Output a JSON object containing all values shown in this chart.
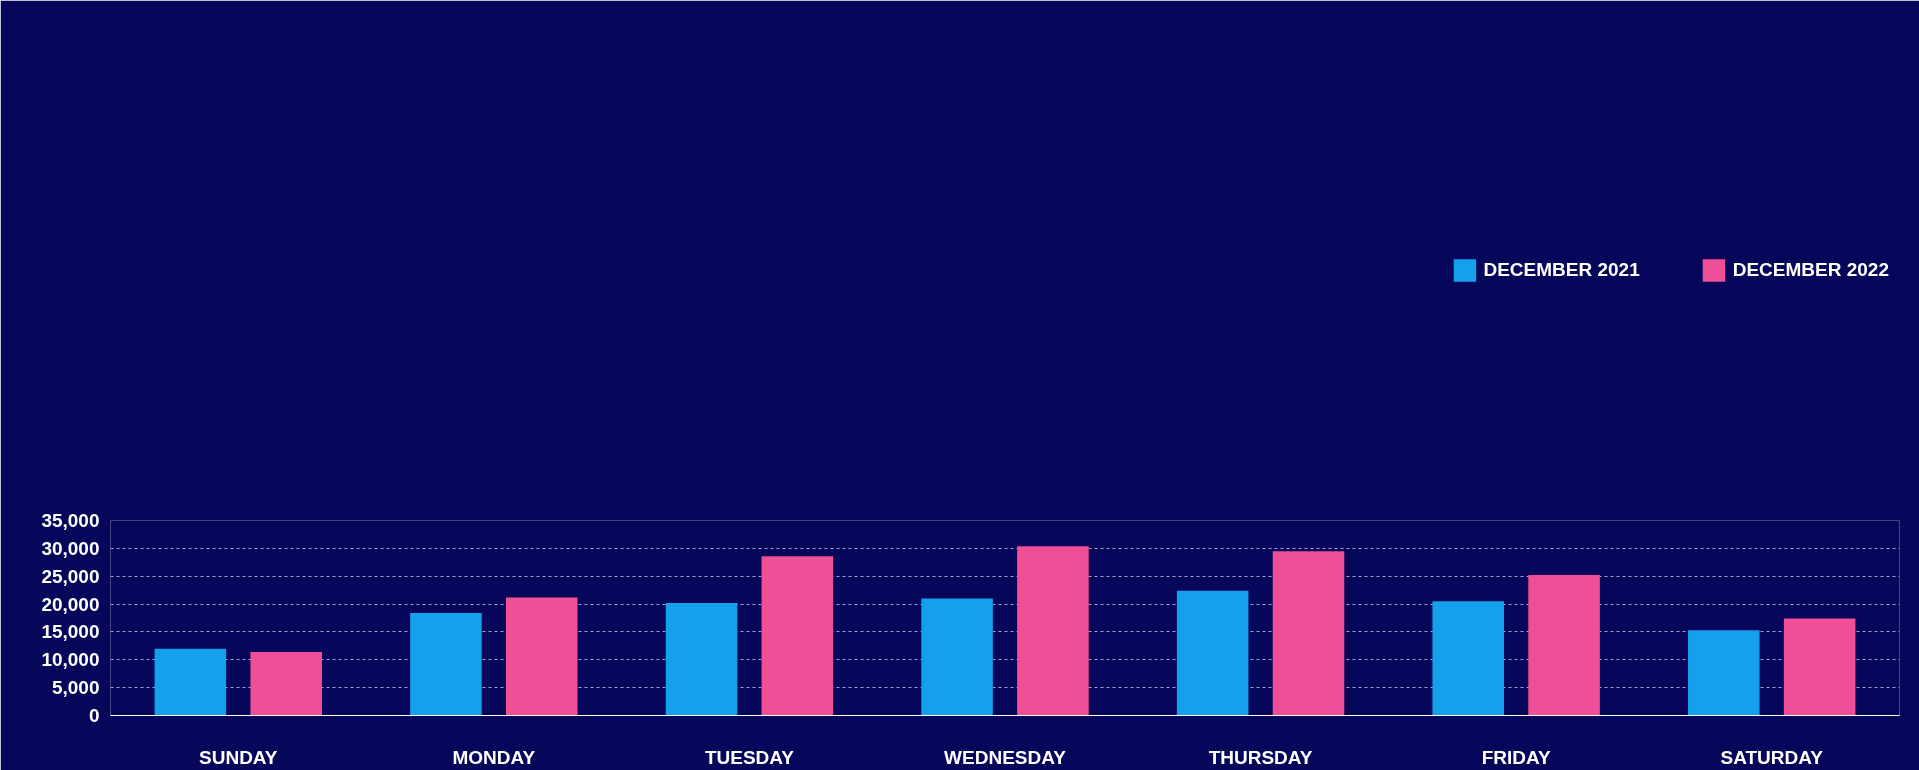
{
  "chart_data": {
    "type": "bar",
    "categories": [
      "SUNDAY",
      "MONDAY",
      "TUESDAY",
      "WEDNESDAY",
      "THURSDAY",
      "FRIDAY",
      "SATURDAY"
    ],
    "series": [
      {
        "name": "DECEMBER 2021",
        "color": "#15a0ec",
        "values": [
          12000,
          18400,
          20200,
          21000,
          22400,
          20500,
          15300
        ]
      },
      {
        "name": "DECEMBER 2022",
        "color": "#ef4f96",
        "values": [
          11400,
          21200,
          28600,
          30400,
          29500,
          25200,
          17400
        ]
      }
    ],
    "ylim": [
      0,
      35000
    ],
    "yticks": [
      0,
      {
        "value": 5000,
        "label": "5,000"
      },
      {
        "value": 10000,
        "label": "10,000"
      },
      {
        "value": 15000,
        "label": "15,000"
      },
      {
        "value": 20000,
        "label": "20,000"
      },
      {
        "value": 25000,
        "label": "25,000"
      },
      {
        "value": 30000,
        "label": "30,000"
      },
      {
        "value": 35000,
        "label": "35,000"
      }
    ],
    "grid": "y",
    "legend": "top right"
  }
}
